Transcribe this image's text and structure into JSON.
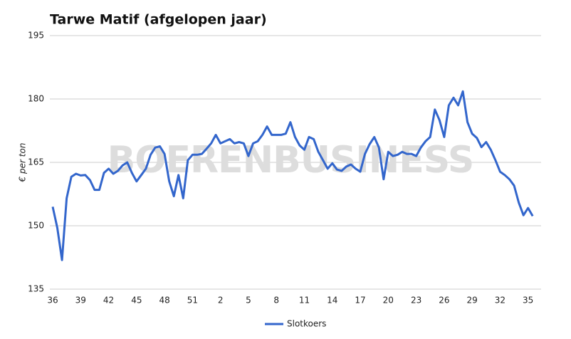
{
  "chart_data": {
    "type": "line",
    "title": "Tarwe Matif (afgelopen jaar)",
    "y_label": "€ per ton",
    "watermark": "BOERENBUSINESS",
    "categories": [
      "36",
      null,
      null,
      null,
      null,
      null,
      "39",
      null,
      null,
      null,
      null,
      null,
      "42",
      null,
      null,
      null,
      null,
      null,
      "45",
      null,
      null,
      null,
      null,
      null,
      "48",
      null,
      null,
      null,
      null,
      null,
      "51",
      null,
      null,
      null,
      null,
      null,
      "2",
      null,
      null,
      null,
      null,
      null,
      "5",
      null,
      null,
      null,
      null,
      null,
      "8",
      null,
      null,
      null,
      null,
      null,
      "11",
      null,
      null,
      null,
      null,
      null,
      "14",
      null,
      null,
      null,
      null,
      null,
      "17",
      null,
      null,
      null,
      null,
      null,
      "20",
      null,
      null,
      null,
      null,
      null,
      "23",
      null,
      null,
      null,
      null,
      null,
      "26",
      null,
      null,
      null,
      null,
      null,
      "29",
      null,
      null,
      null,
      null,
      null,
      "32",
      null,
      null,
      null,
      null,
      null,
      "35",
      null
    ],
    "series": [
      {
        "name": "Slotkoers",
        "color": "#3366cc",
        "values": [
          154.5,
          149.5,
          141.9,
          156.5,
          161.6,
          162.3,
          161.9,
          162,
          160.8,
          158.5,
          158.5,
          162.5,
          163.5,
          162.3,
          163,
          164.3,
          165,
          162.5,
          160.5,
          162,
          163.5,
          166.8,
          168.5,
          168.8,
          167,
          160.5,
          157,
          162,
          156.5,
          165.5,
          166.8,
          166.8,
          167,
          168.2,
          169.5,
          171.5,
          169.5,
          170,
          170.5,
          169.5,
          169.8,
          169.5,
          166.5,
          169.5,
          170,
          171.5,
          173.5,
          171.5,
          171.5,
          171.5,
          171.8,
          174.5,
          171,
          169,
          168,
          171,
          170.5,
          167.5,
          165.5,
          163.5,
          164.8,
          163.3,
          163,
          164,
          164.5,
          163.5,
          162.8,
          167,
          169.3,
          171,
          168.5,
          161,
          167.5,
          166.5,
          166.8,
          167.5,
          167,
          167,
          166.5,
          168.5,
          170,
          171,
          177.5,
          175,
          171,
          178.5,
          180.3,
          178.5,
          181.8,
          174.5,
          171.8,
          170.8,
          168.6,
          169.8,
          168,
          165.5,
          162.8,
          162,
          161,
          159.5,
          155.5,
          152.5,
          154.2,
          152.3
        ]
      }
    ],
    "ylim": [
      135,
      195
    ],
    "yticks": [
      135,
      150,
      165,
      180,
      195
    ],
    "grid": true
  }
}
